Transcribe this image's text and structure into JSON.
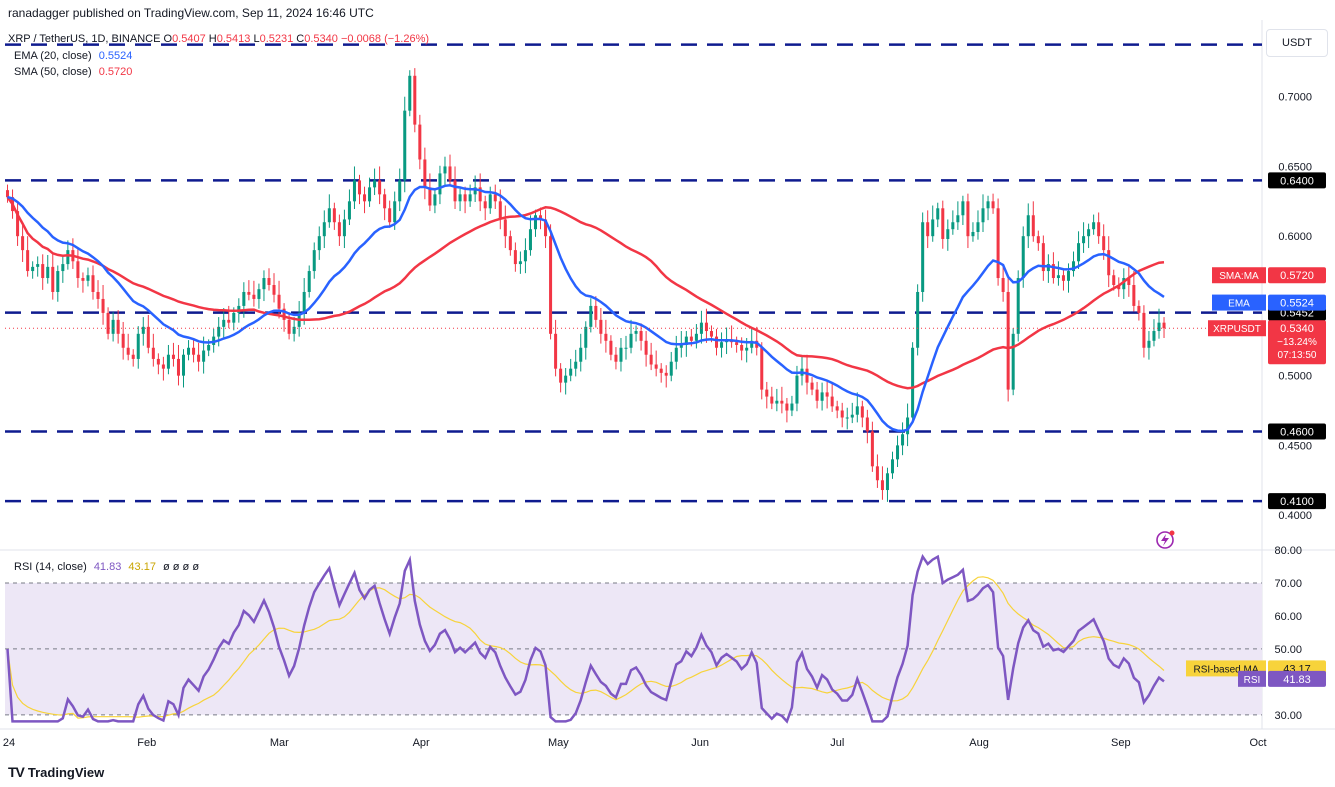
{
  "header": {
    "published_text": "ranadagger published on TradingView.com, Sep 11, 2024 16:46 UTC"
  },
  "legend": {
    "symbol": "XRP / TetherUS, 1D, BINANCE",
    "ohlc": [
      {
        "label": "O",
        "value": "0.5407"
      },
      {
        "label": "H",
        "value": "0.5413"
      },
      {
        "label": "L",
        "value": "0.5231"
      },
      {
        "label": "C",
        "value": "0.5340"
      }
    ],
    "change": "−0.0068 (−1.26%)",
    "ema_label": "EMA (20, close)",
    "ema_value": "0.5524",
    "sma_label": "SMA (50, close)",
    "sma_value": "0.5720"
  },
  "currency_button": "USDT",
  "rsi_legend": {
    "label": "RSI (14, close)",
    "rsi_value": "41.83",
    "ma_value": "43.17",
    "extras": "ø ø ø ø"
  },
  "branding": {
    "name": "TradingView",
    "logo": "TV"
  },
  "colors": {
    "up": "#089981",
    "down": "#f23645",
    "ema": "#2962ff",
    "sma": "#f23645",
    "level_line": "#0f1b8f",
    "level_tag": "#000000",
    "rsi": "#7e57c2",
    "rsi_ma": "#f7d33b",
    "rsi_band": "#ede7f6",
    "price_tag": "#f23645"
  },
  "chart_data": [
    {
      "type": "candlestick",
      "title": "XRP / TetherUS, 1D, BINANCE",
      "y_axis_ticks": [
        "0.7000",
        "0.6500",
        "0.6000",
        "0.5500",
        "0.5000",
        "0.4500",
        "0.4000"
      ],
      "ylim": [
        0.375,
        0.755
      ],
      "x_axis_ticks": [
        "24",
        "Feb",
        "Mar",
        "Apr",
        "May",
        "Jun",
        "Jul",
        "Aug",
        "Sep",
        "Oct"
      ],
      "x_range": [
        "2024-01-01",
        "2024-10-01"
      ],
      "horizontal_levels": [
        {
          "value": 0.7373,
          "label": "0.7373"
        },
        {
          "value": 0.64,
          "label": "0.6400"
        },
        {
          "value": 0.5452,
          "label": "0.5452"
        },
        {
          "value": 0.46,
          "label": "0.4600"
        },
        {
          "value": 0.41,
          "label": "0.4100"
        }
      ],
      "price_tags": [
        {
          "name": "SMA:MA",
          "value": "0.5720",
          "y": 0.572
        },
        {
          "name": "EMA",
          "value": "0.5524",
          "y": 0.5524
        },
        {
          "name": "XRPUSDT",
          "value": "0.5340",
          "y": 0.534,
          "change": "−13.24%",
          "countdown": "07:13:50"
        }
      ],
      "candles_close": [
        0.628,
        0.618,
        0.6,
        0.59,
        0.575,
        0.578,
        0.58,
        0.57,
        0.578,
        0.56,
        0.575,
        0.58,
        0.59,
        0.582,
        0.57,
        0.568,
        0.572,
        0.56,
        0.555,
        0.545,
        0.53,
        0.54,
        0.53,
        0.52,
        0.515,
        0.512,
        0.53,
        0.535,
        0.52,
        0.512,
        0.508,
        0.505,
        0.515,
        0.512,
        0.5,
        0.515,
        0.52,
        0.515,
        0.51,
        0.518,
        0.522,
        0.528,
        0.535,
        0.54,
        0.538,
        0.545,
        0.55,
        0.56,
        0.558,
        0.555,
        0.562,
        0.57,
        0.565,
        0.558,
        0.548,
        0.54,
        0.53,
        0.535,
        0.545,
        0.56,
        0.575,
        0.59,
        0.6,
        0.61,
        0.62,
        0.61,
        0.6,
        0.612,
        0.625,
        0.64,
        0.63,
        0.625,
        0.635,
        0.64,
        0.63,
        0.62,
        0.61,
        0.625,
        0.64,
        0.69,
        0.715,
        0.68,
        0.655,
        0.635,
        0.622,
        0.63,
        0.645,
        0.65,
        0.64,
        0.625,
        0.63,
        0.625,
        0.63,
        0.635,
        0.625,
        0.62,
        0.63,
        0.625,
        0.612,
        0.6,
        0.59,
        0.58,
        0.582,
        0.59,
        0.605,
        0.615,
        0.612,
        0.6,
        0.53,
        0.505,
        0.495,
        0.5,
        0.505,
        0.51,
        0.52,
        0.535,
        0.55,
        0.54,
        0.53,
        0.525,
        0.515,
        0.51,
        0.52,
        0.52,
        0.53,
        0.532,
        0.525,
        0.515,
        0.508,
        0.505,
        0.502,
        0.5,
        0.51,
        0.52,
        0.522,
        0.528,
        0.525,
        0.53,
        0.538,
        0.532,
        0.528,
        0.52,
        0.524,
        0.526,
        0.524,
        0.522,
        0.518,
        0.52,
        0.525,
        0.52,
        0.49,
        0.485,
        0.48,
        0.482,
        0.48,
        0.475,
        0.48,
        0.5,
        0.505,
        0.495,
        0.49,
        0.482,
        0.488,
        0.485,
        0.478,
        0.475,
        0.47,
        0.47,
        0.472,
        0.478,
        0.47,
        0.46,
        0.435,
        0.425,
        0.418,
        0.43,
        0.44,
        0.45,
        0.458,
        0.47,
        0.52,
        0.56,
        0.61,
        0.6,
        0.612,
        0.62,
        0.598,
        0.605,
        0.61,
        0.615,
        0.625,
        0.6,
        0.603,
        0.61,
        0.62,
        0.625,
        0.62,
        0.57,
        0.56,
        0.49,
        0.53,
        0.57,
        0.6,
        0.615,
        0.6,
        0.595,
        0.575,
        0.58,
        0.57,
        0.572,
        0.568,
        0.575,
        0.582,
        0.595,
        0.6,
        0.605,
        0.61,
        0.6,
        0.59,
        0.572,
        0.565,
        0.562,
        0.57,
        0.565,
        0.55,
        0.545,
        0.52,
        0.525,
        0.532,
        0.538,
        0.534
      ]
    },
    {
      "type": "line",
      "title": "RSI (14, close)",
      "y_axis_ticks": [
        "80.00",
        "70.00",
        "60.00",
        "50.00",
        "30.00"
      ],
      "ylim": [
        26,
        80
      ],
      "band": [
        30,
        70
      ],
      "midline": 50,
      "series": [
        {
          "name": "RSI",
          "last": "41.83"
        },
        {
          "name": "RSI-based MA",
          "last": "43.17"
        }
      ]
    }
  ]
}
